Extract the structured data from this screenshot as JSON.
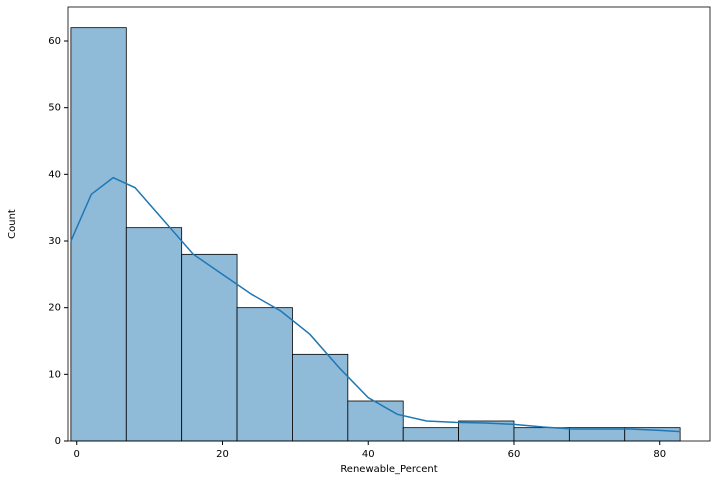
{
  "chart_data": {
    "type": "histogram",
    "xlabel": "Renewable_Percent",
    "ylabel": "Count",
    "bins": [
      -0.8,
      6.8,
      14.4,
      22.0,
      29.6,
      37.2,
      44.8,
      52.4,
      60.0,
      67.6,
      75.2,
      82.8
    ],
    "counts": [
      62,
      32,
      28,
      20,
      13,
      6,
      2,
      3,
      2,
      2,
      2
    ],
    "color": "#8fbbd9",
    "edgecolor": "#000000",
    "kde": {
      "color": "#1f77b4",
      "x": [
        -0.8,
        2,
        5,
        8,
        12,
        16,
        20,
        24,
        28,
        32,
        36,
        40,
        44,
        48,
        52,
        56,
        60,
        64,
        68,
        72,
        76,
        80,
        82.8
      ],
      "values": [
        30,
        37,
        39.5,
        38,
        33,
        28,
        25,
        22,
        19.5,
        16,
        11,
        6.5,
        4,
        3,
        2.8,
        2.7,
        2.5,
        2.1,
        1.8,
        1.8,
        1.8,
        1.6,
        1.4
      ]
    },
    "xlim": [
      -1.2,
      86.9
    ],
    "ylim": [
      0,
      65.1
    ],
    "xticks": [
      0,
      20,
      40,
      60,
      80
    ],
    "yticks": [
      0,
      10,
      20,
      30,
      40,
      50,
      60
    ]
  }
}
